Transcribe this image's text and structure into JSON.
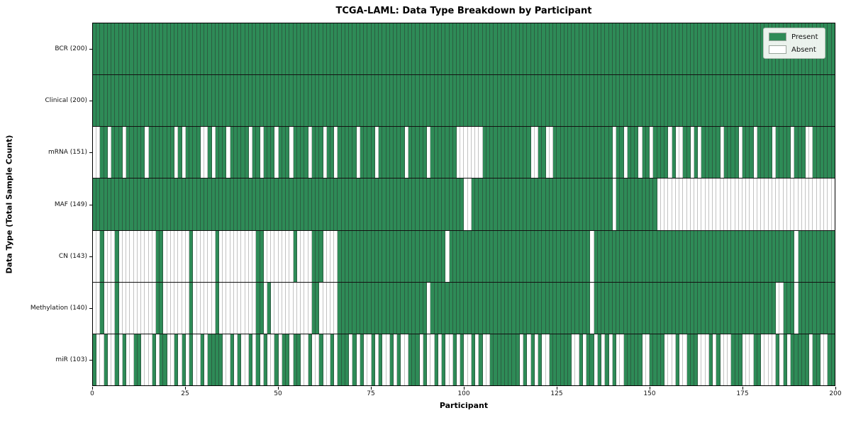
{
  "chart_data": {
    "type": "heatmap",
    "title": "TCGA-LAML: Data Type Breakdown by Participant",
    "xlabel": "Participant",
    "ylabel": "Data Type (Total Sample Count)",
    "n_participants": 200,
    "x_ticks": [
      0,
      25,
      50,
      75,
      100,
      125,
      150,
      175,
      200
    ],
    "legend": {
      "position": "upper right",
      "present_label": "Present",
      "absent_label": "Absent"
    },
    "colors": {
      "present": "#2e8b57",
      "absent": "#ffffff",
      "cell_edge": "rgba(40,40,40,0.45)",
      "row_separator": "#111111",
      "axes_border": "#000000"
    },
    "grid": false,
    "rows": [
      {
        "label": "BCR (200)",
        "present_count": 200,
        "absent_cells_0based": []
      },
      {
        "label": "Clinical (200)",
        "present_count": 200,
        "absent_cells_0based": []
      },
      {
        "label": "mRNA (151)",
        "present_count": 151,
        "absent_cells_0based": [
          0,
          1,
          4,
          8,
          14,
          22,
          24,
          29,
          30,
          32,
          36,
          42,
          45,
          49,
          53,
          58,
          62,
          65,
          71,
          76,
          84,
          90,
          98,
          99,
          100,
          101,
          102,
          103,
          104,
          118,
          119,
          122,
          123,
          140,
          143,
          147,
          150,
          155,
          157,
          158,
          161,
          163,
          169,
          174,
          178,
          183,
          188,
          192,
          193
        ]
      },
      {
        "label": "MAF (149)",
        "present_count": 149,
        "absent_cells_0based": [
          100,
          101,
          140,
          152,
          153,
          154,
          155,
          156,
          157,
          158,
          159,
          160,
          161,
          162,
          163,
          164,
          165,
          166,
          167,
          168,
          169,
          170,
          171,
          172,
          173,
          174,
          175,
          176,
          177,
          178,
          179,
          180,
          181,
          182,
          183,
          184,
          185,
          186,
          187,
          188,
          189,
          190,
          191,
          192,
          193,
          194,
          195,
          196,
          197,
          198,
          199
        ]
      },
      {
        "label": "CN (143)",
        "present_count": 143,
        "absent_cells_0based": [
          0,
          1,
          3,
          4,
          5,
          7,
          8,
          9,
          10,
          11,
          12,
          13,
          14,
          15,
          16,
          19,
          20,
          21,
          22,
          23,
          24,
          25,
          27,
          28,
          29,
          30,
          31,
          32,
          34,
          35,
          36,
          37,
          38,
          39,
          40,
          41,
          42,
          43,
          46,
          47,
          48,
          49,
          50,
          51,
          52,
          53,
          55,
          56,
          57,
          58,
          62,
          63,
          64,
          65,
          95,
          134,
          189
        ]
      },
      {
        "label": "Methylation (140)",
        "present_count": 140,
        "absent_cells_0based": [
          0,
          1,
          3,
          4,
          5,
          7,
          8,
          9,
          10,
          11,
          12,
          13,
          14,
          15,
          16,
          19,
          20,
          21,
          22,
          23,
          24,
          25,
          27,
          28,
          29,
          30,
          31,
          32,
          34,
          35,
          36,
          37,
          38,
          39,
          40,
          41,
          42,
          43,
          46,
          48,
          49,
          50,
          51,
          52,
          53,
          54,
          55,
          56,
          57,
          58,
          61,
          62,
          63,
          64,
          65,
          90,
          134,
          184,
          185,
          189
        ]
      },
      {
        "label": "miR (103)",
        "present_count": 103,
        "absent_cells_0based": [
          1,
          2,
          4,
          5,
          7,
          9,
          10,
          13,
          14,
          15,
          17,
          20,
          21,
          23,
          25,
          27,
          28,
          30,
          35,
          36,
          38,
          40,
          41,
          43,
          45,
          47,
          48,
          50,
          53,
          56,
          57,
          59,
          60,
          62,
          63,
          65,
          69,
          71,
          73,
          74,
          76,
          78,
          79,
          81,
          83,
          84,
          88,
          90,
          91,
          93,
          95,
          96,
          98,
          100,
          101,
          103,
          105,
          106,
          115,
          117,
          119,
          121,
          122,
          129,
          130,
          132,
          135,
          137,
          139,
          141,
          142,
          148,
          149,
          154,
          155,
          156,
          158,
          159,
          163,
          164,
          165,
          167,
          169,
          170,
          171,
          175,
          176,
          177,
          180,
          181,
          182,
          183,
          185,
          187,
          193,
          196,
          197
        ]
      }
    ]
  }
}
